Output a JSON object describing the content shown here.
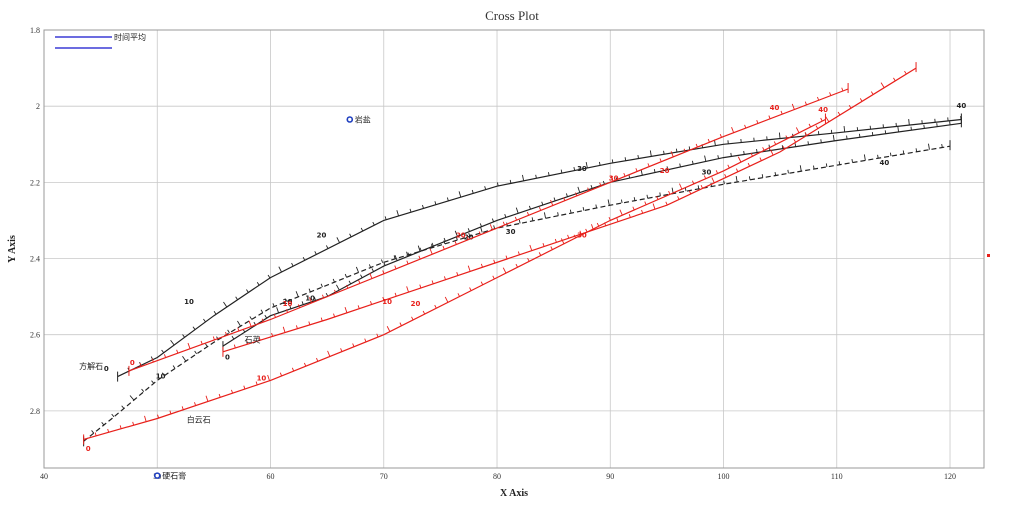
{
  "chart_data": {
    "type": "line",
    "title": "Cross Plot",
    "xlabel": "X Axis",
    "ylabel": "Y Axis",
    "xlim": [
      40,
      123
    ],
    "ylim": [
      2.95,
      1.8
    ],
    "y_inverted": true,
    "x_ticks": [
      "40",
      "50",
      "60",
      "70",
      "80",
      "90",
      "100",
      "110",
      "120"
    ],
    "y_ticks": [
      "1.8",
      "2",
      "2.2",
      "2.4",
      "2.6",
      "2.8"
    ],
    "grid": true,
    "legend": {
      "position": "top-left",
      "entries": [
        {
          "label": "时间平均",
          "color": "#3b3bd6"
        },
        {
          "label": "",
          "color": "#3b3bd6"
        }
      ]
    },
    "colors": {
      "black": "#222222",
      "red": "#e8201b",
      "grid": "#c8c8c8",
      "mineral": "#1f3fbf"
    },
    "minerals": [
      {
        "name": "岩盐",
        "x": 67,
        "y": 2.035
      },
      {
        "name": "硬石膏",
        "x": 50,
        "y": 2.97
      }
    ],
    "annotations": [
      {
        "text": "方解石",
        "x": 43.1,
        "y": 2.69
      },
      {
        "text": "石英",
        "x": 57.7,
        "y": 2.62
      },
      {
        "text": "白云石",
        "x": 52.6,
        "y": 2.83
      }
    ],
    "series": [
      {
        "color": "black",
        "dash": false,
        "points": [
          [
            46.5,
            2.71
          ],
          [
            50,
            2.66
          ],
          [
            55,
            2.55
          ],
          [
            60,
            2.45
          ],
          [
            70,
            2.3
          ],
          [
            80,
            2.21
          ],
          [
            90,
            2.15
          ],
          [
            100,
            2.1
          ],
          [
            110,
            2.07
          ],
          [
            121,
            2.035
          ]
        ],
        "labels": [
          {
            "text": "0",
            "x": 45.5,
            "y": 2.695
          },
          {
            "text": "10",
            "x": 52.8,
            "y": 2.52
          },
          {
            "text": "20",
            "x": 64.5,
            "y": 2.345
          },
          {
            "text": "30",
            "x": 87.5,
            "y": 2.17
          },
          {
            "text": "40",
            "x": 121,
            "y": 2.005
          }
        ]
      },
      {
        "color": "black",
        "dash": false,
        "points": [
          [
            55.8,
            2.63
          ],
          [
            60,
            2.55
          ],
          [
            65,
            2.5
          ],
          [
            70,
            2.42
          ],
          [
            80,
            2.3
          ],
          [
            90,
            2.2
          ],
          [
            100,
            2.135
          ],
          [
            110,
            2.09
          ],
          [
            121,
            2.045
          ]
        ],
        "labels": [
          {
            "text": "0",
            "x": 56.2,
            "y": 2.665
          },
          {
            "text": "10",
            "x": 63.5,
            "y": 2.51
          },
          {
            "text": "20",
            "x": 77.5,
            "y": 2.35
          },
          {
            "text": "30",
            "x": 98.5,
            "y": 2.18
          }
        ]
      },
      {
        "color": "black",
        "dash": true,
        "points": [
          [
            43.5,
            2.88
          ],
          [
            46,
            2.82
          ],
          [
            50,
            2.72
          ],
          [
            55,
            2.62
          ],
          [
            60,
            2.53
          ],
          [
            70,
            2.41
          ],
          [
            80,
            2.32
          ],
          [
            90,
            2.26
          ],
          [
            100,
            2.205
          ],
          [
            110,
            2.155
          ],
          [
            120,
            2.105
          ]
        ],
        "labels": [
          {
            "text": "10",
            "x": 50.3,
            "y": 2.715
          },
          {
            "text": "20",
            "x": 61.5,
            "y": 2.52
          },
          {
            "text": "30",
            "x": 81.2,
            "y": 2.335
          },
          {
            "text": "40",
            "x": 114.2,
            "y": 2.155
          }
        ]
      },
      {
        "color": "red",
        "dash": false,
        "points": [
          [
            47.5,
            2.695
          ],
          [
            60,
            2.56
          ],
          [
            70,
            2.44
          ],
          [
            80,
            2.32
          ],
          [
            90,
            2.2
          ],
          [
            100,
            2.08
          ],
          [
            111,
            1.955
          ]
        ],
        "labels": [
          {
            "text": "0",
            "x": 47.8,
            "y": 2.68
          },
          {
            "text": "10",
            "x": 61.5,
            "y": 2.525
          },
          {
            "text": "20",
            "x": 76.8,
            "y": 2.345
          },
          {
            "text": "30",
            "x": 90.3,
            "y": 2.195
          },
          {
            "text": "40",
            "x": 104.5,
            "y": 2.01
          }
        ]
      },
      {
        "color": "red",
        "dash": false,
        "points": [
          [
            55.8,
            2.645
          ],
          [
            65,
            2.56
          ],
          [
            75,
            2.46
          ],
          [
            85,
            2.36
          ],
          [
            95,
            2.26
          ],
          [
            105,
            2.12
          ],
          [
            117,
            1.9
          ]
        ],
        "labels": [
          {
            "text": "10",
            "x": 70.3,
            "y": 2.52
          },
          {
            "text": "20",
            "x": 94.8,
            "y": 2.175
          },
          {
            "text": "40",
            "x": 108.8,
            "y": 2.015
          }
        ]
      },
      {
        "color": "red",
        "dash": false,
        "points": [
          [
            43.5,
            2.875
          ],
          [
            50,
            2.82
          ],
          [
            60,
            2.72
          ],
          [
            70,
            2.6
          ],
          [
            80,
            2.45
          ],
          [
            90,
            2.3
          ],
          [
            100,
            2.17
          ],
          [
            109,
            2.035
          ]
        ],
        "labels": [
          {
            "text": "0",
            "x": 43.9,
            "y": 2.905
          },
          {
            "text": "10",
            "x": 59.2,
            "y": 2.72
          },
          {
            "text": "20",
            "x": 72.8,
            "y": 2.525
          },
          {
            "text": "30",
            "x": 87.5,
            "y": 2.345
          }
        ]
      }
    ]
  }
}
